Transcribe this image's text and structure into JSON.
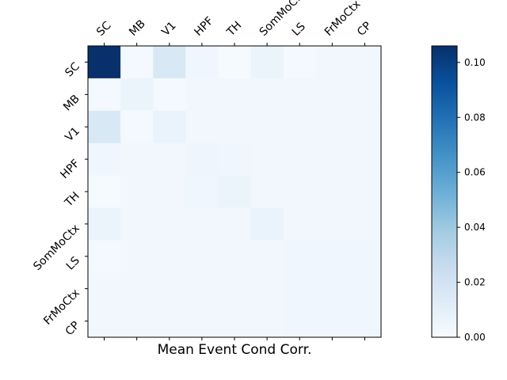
{
  "chart_data": {
    "type": "heatmap",
    "xlabel": "Mean Event Cond Corr.",
    "x_tick_labels": [
      "SC",
      "MB",
      "V1",
      "HPF",
      "TH",
      "SomMoCtx",
      "LS",
      "FrMoCtx",
      "CP"
    ],
    "y_tick_labels": [
      "SC",
      "MB",
      "V1",
      "HPF",
      "TH",
      "SomMoCtx",
      "LS",
      "FrMoCtx",
      "CP"
    ],
    "values": [
      [
        0.106,
        0.002,
        0.016,
        0.004,
        0.001,
        0.006,
        0.002,
        0.003,
        0.003
      ],
      [
        0.002,
        0.006,
        0.002,
        0.003,
        0.003,
        0.003,
        0.003,
        0.003,
        0.003
      ],
      [
        0.016,
        0.002,
        0.007,
        0.003,
        0.003,
        0.003,
        0.003,
        0.003,
        0.003
      ],
      [
        0.004,
        0.003,
        0.003,
        0.005,
        0.004,
        0.003,
        0.003,
        0.003,
        0.003
      ],
      [
        0.001,
        0.003,
        0.003,
        0.004,
        0.006,
        0.003,
        0.003,
        0.003,
        0.003
      ],
      [
        0.006,
        0.003,
        0.003,
        0.003,
        0.003,
        0.007,
        0.003,
        0.003,
        0.003
      ],
      [
        0.002,
        0.003,
        0.003,
        0.003,
        0.003,
        0.003,
        0.004,
        0.004,
        0.004
      ],
      [
        0.003,
        0.003,
        0.003,
        0.003,
        0.003,
        0.003,
        0.004,
        0.004,
        0.004
      ],
      [
        0.003,
        0.003,
        0.003,
        0.003,
        0.003,
        0.003,
        0.004,
        0.004,
        0.004
      ]
    ],
    "colormap": "Blues",
    "colorbar": {
      "range": [
        0,
        0.106
      ],
      "ticks": [
        0.0,
        0.02,
        0.04,
        0.06,
        0.08,
        0.1
      ],
      "tick_labels": [
        "0.00",
        "0.02",
        "0.04",
        "0.06",
        "0.08",
        "0.10"
      ]
    }
  }
}
